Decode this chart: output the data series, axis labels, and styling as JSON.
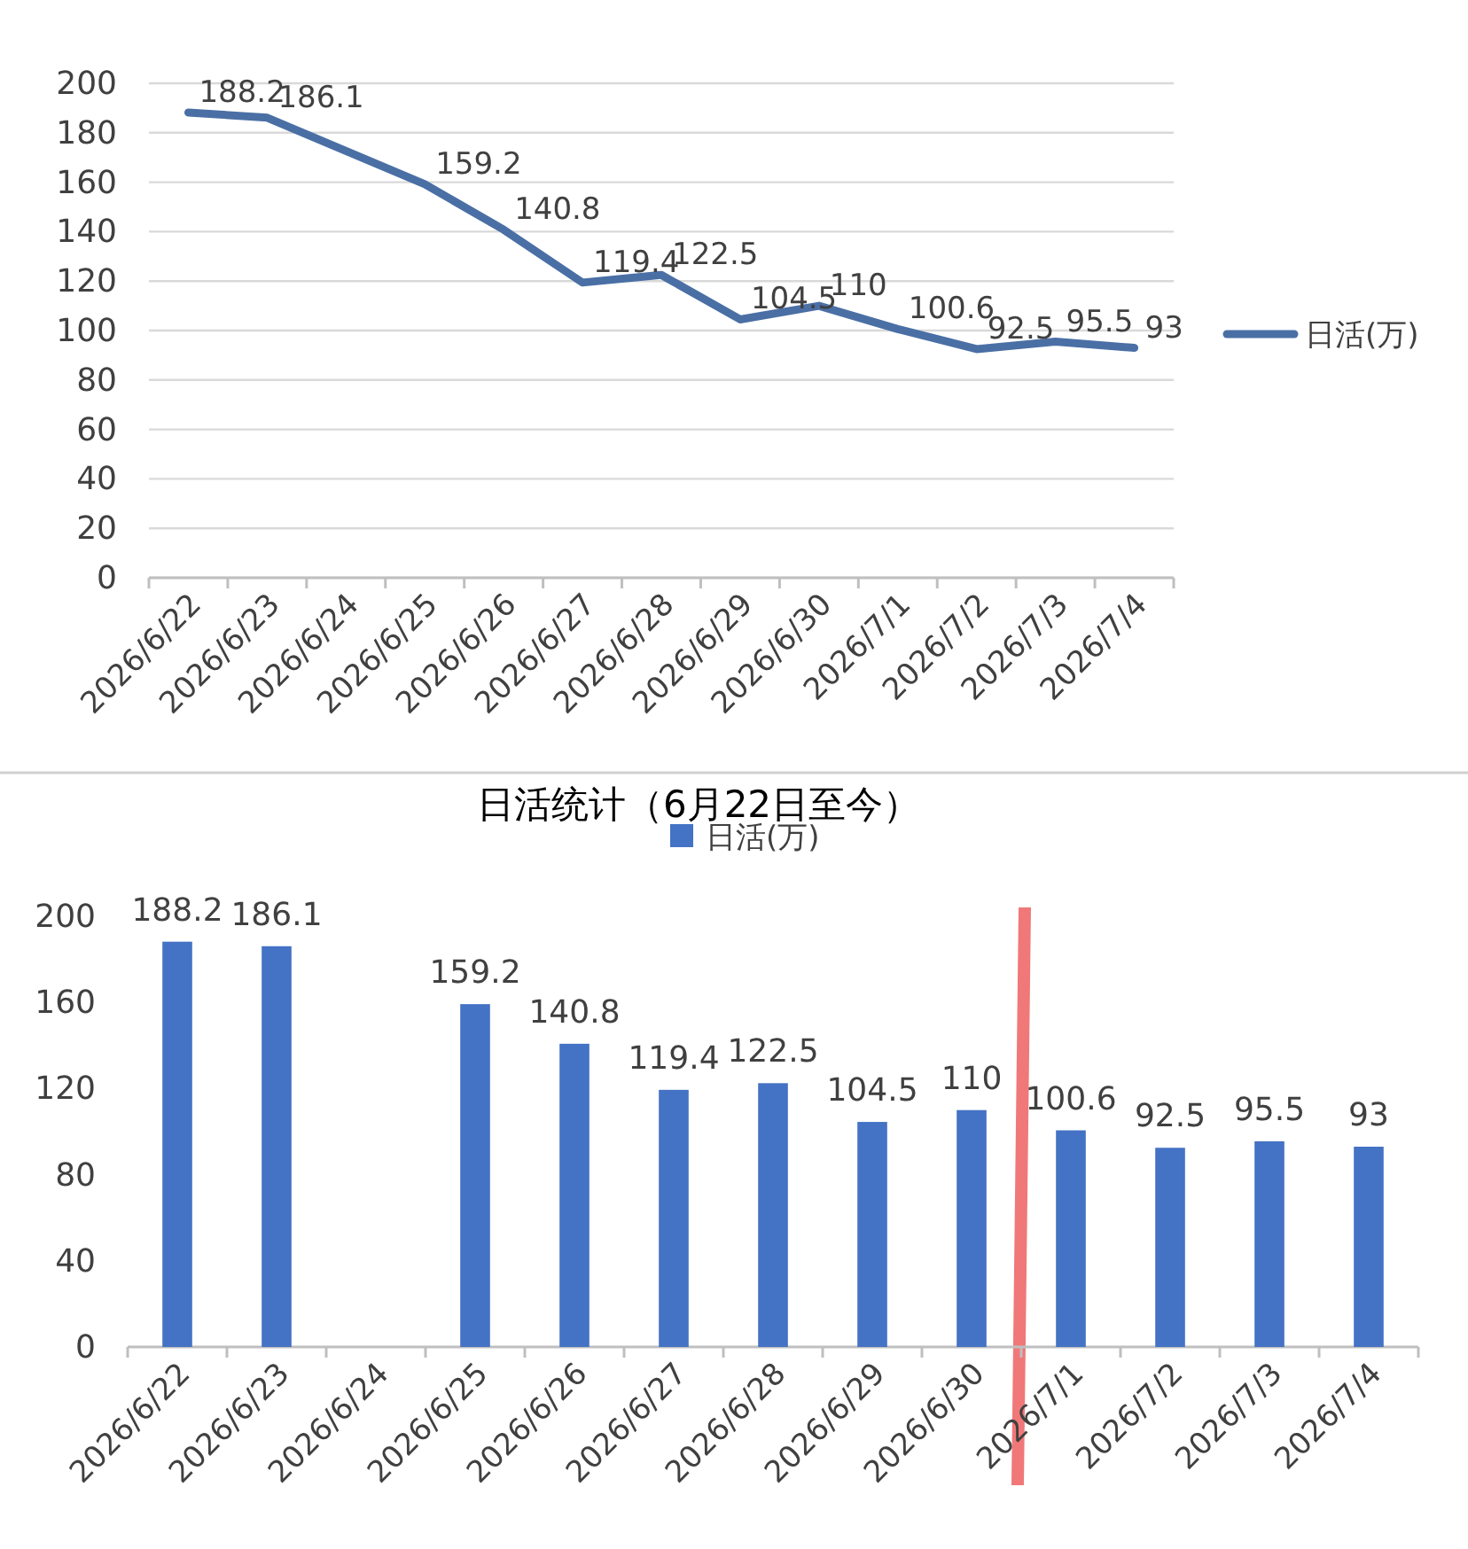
{
  "chart_data": [
    {
      "type": "line",
      "categories": [
        "2026/6/22",
        "2026/6/23",
        "2026/6/24",
        "2026/6/25",
        "2026/6/26",
        "2026/6/27",
        "2026/6/28",
        "2026/6/29",
        "2026/6/30",
        "2026/7/1",
        "2026/7/2",
        "2026/7/3",
        "2026/7/4"
      ],
      "series": [
        {
          "name": "日活(万)",
          "color": "#4a6fa5",
          "values": [
            188.2,
            186.1,
            null,
            159.2,
            140.8,
            119.4,
            122.5,
            104.5,
            110,
            100.6,
            92.5,
            95.5,
            93
          ]
        }
      ],
      "ylim": [
        0,
        200
      ],
      "yticks": [
        0,
        20,
        40,
        60,
        80,
        100,
        120,
        140,
        160,
        180,
        200
      ],
      "grid": "y",
      "legend": "right",
      "data_labels": true,
      "marker": "none",
      "line_style": "solid"
    },
    {
      "type": "bar",
      "title": "日活统计（6月22日至今）",
      "categories": [
        "2026/6/22",
        "2026/6/23",
        "2026/6/24",
        "2026/6/25",
        "2026/6/26",
        "2026/6/27",
        "2026/6/28",
        "2026/6/29",
        "2026/6/30",
        "2026/7/1",
        "2026/7/2",
        "2026/7/3",
        "2026/7/4"
      ],
      "series": [
        {
          "name": "日活(万)",
          "color": "#4472c4",
          "values": [
            188.2,
            186.1,
            null,
            159.2,
            140.8,
            119.4,
            122.5,
            104.5,
            110,
            100.6,
            92.5,
            95.5,
            93
          ]
        }
      ],
      "ylim": [
        0,
        200
      ],
      "yticks": [
        0,
        40,
        80,
        120,
        160,
        200
      ],
      "grid": false,
      "legend": "top",
      "data_labels": true
    }
  ]
}
